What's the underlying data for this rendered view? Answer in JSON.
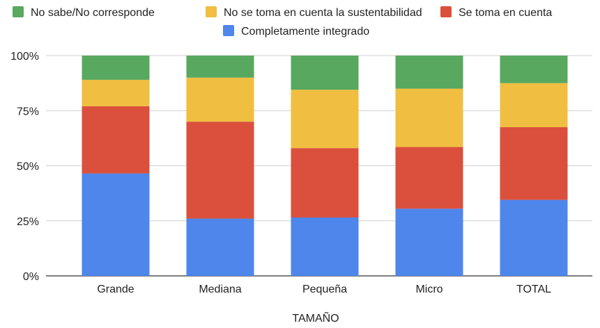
{
  "chart_data": {
    "type": "bar",
    "stacked": true,
    "percent_stacked": true,
    "xlabel": "TAMAÑO",
    "ylabel": "",
    "categories": [
      "Grande",
      "Mediana",
      "Pequeña",
      "Micro",
      "TOTAL"
    ],
    "ylim": [
      0,
      100
    ],
    "yticks": [
      "0%",
      "25%",
      "50%",
      "75%",
      "100%"
    ],
    "yticks_values": [
      0,
      25,
      50,
      75,
      100
    ],
    "grid": true,
    "legend_position": "top",
    "series": [
      {
        "name": "Completamente integrado",
        "color": "#4e86ec",
        "values": [
          46.5,
          26,
          26.5,
          30.5,
          34.5
        ]
      },
      {
        "name": "Se toma en cuenta",
        "color": "#da503c",
        "values": [
          30.5,
          44,
          31.5,
          28,
          33
        ]
      },
      {
        "name": "No se toma en cuenta la sustentabilidad",
        "color": "#f0be41",
        "values": [
          12,
          20,
          26.5,
          26.5,
          20
        ]
      },
      {
        "name": "No sabe/No corresponde",
        "color": "#58a85f",
        "values": [
          11,
          10,
          15.5,
          15,
          12.5
        ]
      }
    ],
    "legend_order": [
      "No sabe/No corresponde",
      "No se toma en cuenta la sustentabilidad",
      "Se toma en cuenta",
      "Completamente integrado"
    ]
  }
}
